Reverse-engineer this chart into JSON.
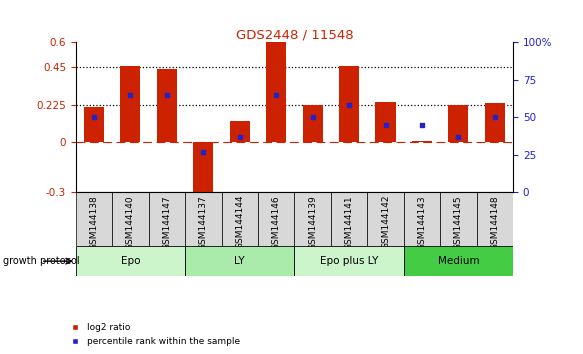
{
  "title": "GDS2448 / 11548",
  "samples": [
    "GSM144138",
    "GSM144140",
    "GSM144147",
    "GSM144137",
    "GSM144144",
    "GSM144146",
    "GSM144139",
    "GSM144141",
    "GSM144142",
    "GSM144143",
    "GSM144145",
    "GSM144148"
  ],
  "log2_ratio": [
    0.21,
    0.46,
    0.44,
    -0.32,
    0.13,
    0.6,
    0.225,
    0.46,
    0.245,
    0.01,
    0.225,
    0.235
  ],
  "percentile_rank": [
    50,
    65,
    65,
    27,
    37,
    65,
    50,
    58,
    45,
    45,
    37,
    50
  ],
  "groups": [
    {
      "label": "Epo",
      "start": 0,
      "end": 3
    },
    {
      "label": "LY",
      "start": 3,
      "end": 6
    },
    {
      "label": "Epo plus LY",
      "start": 6,
      "end": 9
    },
    {
      "label": "Medium",
      "start": 9,
      "end": 12
    }
  ],
  "group_colors": [
    "#ccf5cc",
    "#aaeaaa",
    "#ccf5cc",
    "#44cc44"
  ],
  "bar_color": "#cc2200",
  "dot_color": "#2222cc",
  "ylim_left": [
    -0.3,
    0.6
  ],
  "ylim_right": [
    0,
    100
  ],
  "yticks_left": [
    -0.3,
    0,
    0.225,
    0.45,
    0.6
  ],
  "ytick_labels_left": [
    "-0.3",
    "0",
    "0.225",
    "0.45",
    "0.6"
  ],
  "yticks_right": [
    0,
    25,
    50,
    75,
    100
  ],
  "ytick_labels_right": [
    "0",
    "25",
    "50",
    "75",
    "100%"
  ],
  "group_protocol_label": "growth protocol",
  "bar_width": 0.55
}
